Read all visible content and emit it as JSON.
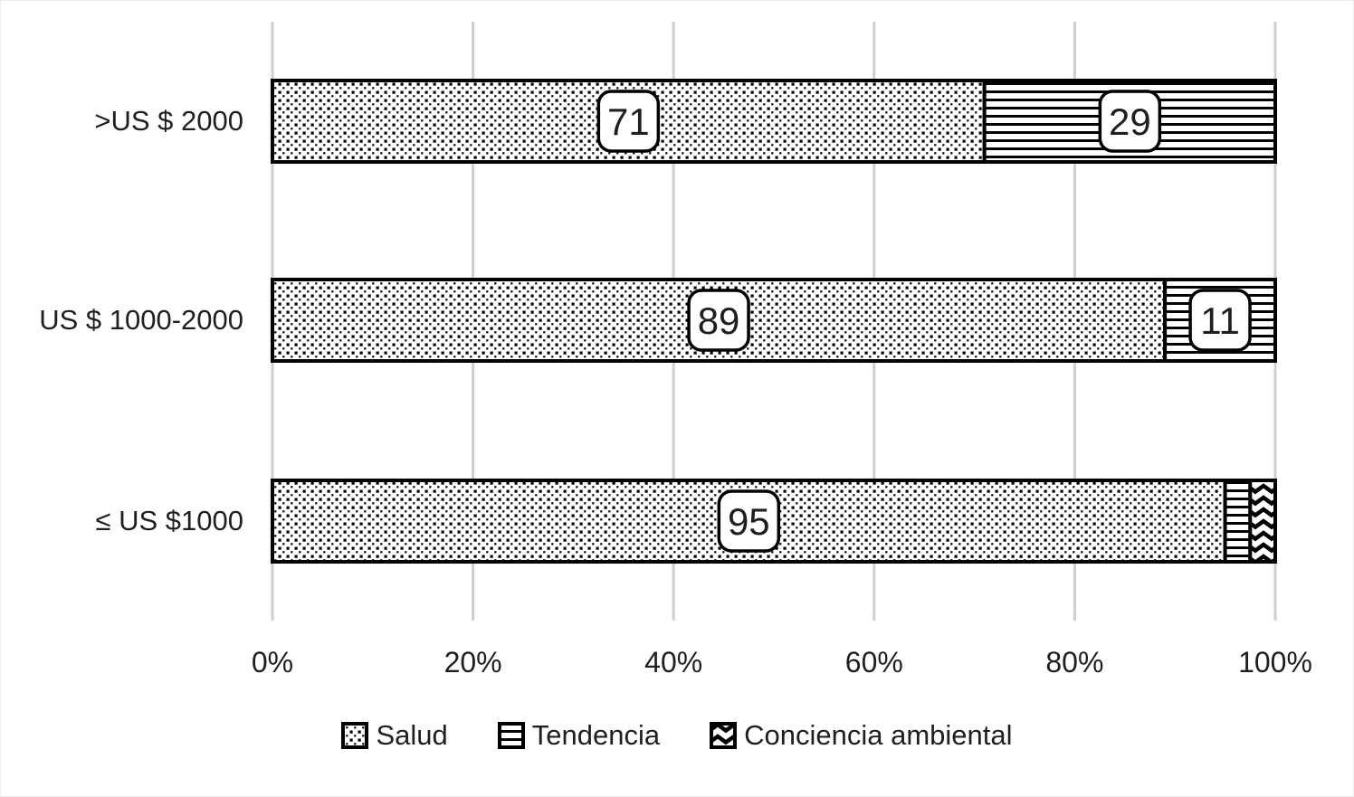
{
  "figure": {
    "background": "#ffffff",
    "grid_color": "#cfcfcf",
    "bar_border_color": "#000000",
    "text_color": "#1f1f1f",
    "label_box_fill": "#ffffff",
    "label_box_border": "#000000"
  },
  "chart_data": {
    "type": "bar",
    "orientation": "horizontal",
    "stacked": true,
    "title": "",
    "xlabel": "",
    "ylabel": "",
    "categories": [
      ">US $ 2000",
      "US $ 1000-2000",
      "≤ US $1000"
    ],
    "series": [
      {
        "name": "Salud",
        "pattern": "dots",
        "values": [
          71,
          89,
          95
        ],
        "labels": [
          "71",
          "89",
          "95"
        ]
      },
      {
        "name": "Tendencia",
        "pattern": "hlines",
        "values": [
          29,
          11,
          2.5
        ],
        "labels": [
          "29",
          "11",
          null
        ]
      },
      {
        "name": "Conciencia ambiental",
        "pattern": "chevron",
        "values": [
          0,
          0,
          2.5
        ],
        "labels": [
          null,
          null,
          null
        ]
      }
    ],
    "x_ticks": [
      "0%",
      "20%",
      "40%",
      "60%",
      "80%",
      "100%"
    ],
    "xlim": [
      0,
      100
    ],
    "grid": "vertical-only",
    "legend_position": "bottom-center"
  }
}
